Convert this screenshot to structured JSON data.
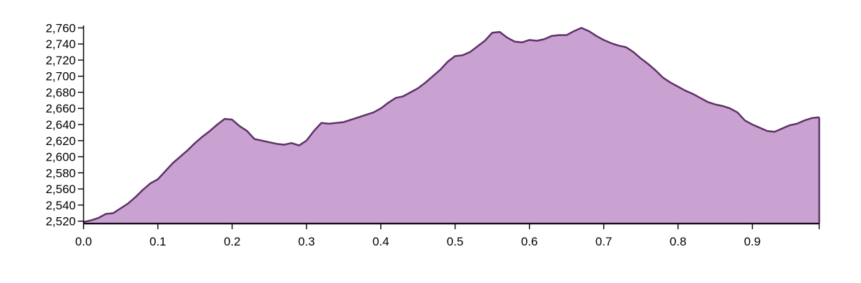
{
  "chart_data": {
    "type": "area",
    "title": "",
    "xlabel": "",
    "ylabel": "",
    "xlim": [
      0,
      0.99
    ],
    "ylim": [
      2517,
      2763
    ],
    "x_ticks": [
      0.0,
      0.1,
      0.2,
      0.3,
      0.4,
      0.5,
      0.6,
      0.7,
      0.8,
      0.9
    ],
    "x_tick_labels": [
      "0.0",
      "0.1",
      "0.2",
      "0.3",
      "0.4",
      "0.5",
      "0.6",
      "0.7",
      "0.8",
      "0.9"
    ],
    "y_ticks": [
      2520,
      2540,
      2560,
      2580,
      2600,
      2620,
      2640,
      2660,
      2680,
      2700,
      2720,
      2740,
      2760
    ],
    "y_tick_labels": [
      "2,520",
      "2,540",
      "2,560",
      "2,580",
      "2,600",
      "2,620",
      "2,640",
      "2,660",
      "2,680",
      "2,700",
      "2,720",
      "2,740",
      "2,760"
    ],
    "grid": false,
    "fill_color": "#c9a2d2",
    "line_color": "#5e3266",
    "x": [
      0.0,
      0.01,
      0.02,
      0.03,
      0.04,
      0.05,
      0.06,
      0.07,
      0.08,
      0.09,
      0.1,
      0.11,
      0.12,
      0.13,
      0.14,
      0.15,
      0.16,
      0.17,
      0.18,
      0.19,
      0.2,
      0.21,
      0.22,
      0.23,
      0.24,
      0.25,
      0.26,
      0.27,
      0.28,
      0.29,
      0.3,
      0.31,
      0.32,
      0.33,
      0.34,
      0.35,
      0.36,
      0.37,
      0.38,
      0.39,
      0.4,
      0.41,
      0.42,
      0.43,
      0.44,
      0.45,
      0.46,
      0.47,
      0.48,
      0.49,
      0.5,
      0.51,
      0.52,
      0.53,
      0.54,
      0.55,
      0.56,
      0.57,
      0.58,
      0.59,
      0.6,
      0.61,
      0.62,
      0.63,
      0.64,
      0.65,
      0.66,
      0.67,
      0.68,
      0.69,
      0.7,
      0.71,
      0.72,
      0.73,
      0.74,
      0.75,
      0.76,
      0.77,
      0.78,
      0.79,
      0.8,
      0.81,
      0.82,
      0.83,
      0.84,
      0.85,
      0.86,
      0.87,
      0.88,
      0.89,
      0.9,
      0.91,
      0.92,
      0.93,
      0.94,
      0.95,
      0.96,
      0.97,
      0.98,
      0.99
    ],
    "values": [
      2519,
      2521,
      2524,
      2529,
      2530,
      2536,
      2542,
      2550,
      2559,
      2567,
      2572,
      2582,
      2592,
      2600,
      2608,
      2617,
      2625,
      2632,
      2640,
      2647,
      2646,
      2638,
      2632,
      2622,
      2620,
      2618,
      2616,
      2615,
      2617,
      2614,
      2620,
      2632,
      2642,
      2641,
      2642,
      2643,
      2646,
      2649,
      2652,
      2655,
      2660,
      2667,
      2673,
      2675,
      2680,
      2685,
      2692,
      2700,
      2708,
      2718,
      2725,
      2726,
      2730,
      2737,
      2744,
      2754,
      2755,
      2748,
      2743,
      2742,
      2745,
      2744,
      2746,
      2750,
      2751,
      2751,
      2756,
      2760,
      2756,
      2750,
      2745,
      2741,
      2738,
      2736,
      2730,
      2722,
      2715,
      2707,
      2698,
      2692,
      2687,
      2682,
      2678,
      2673,
      2668,
      2665,
      2663,
      2660,
      2655,
      2645,
      2640,
      2636,
      2632,
      2631,
      2635,
      2639,
      2641,
      2645,
      2648,
      2649
    ]
  }
}
